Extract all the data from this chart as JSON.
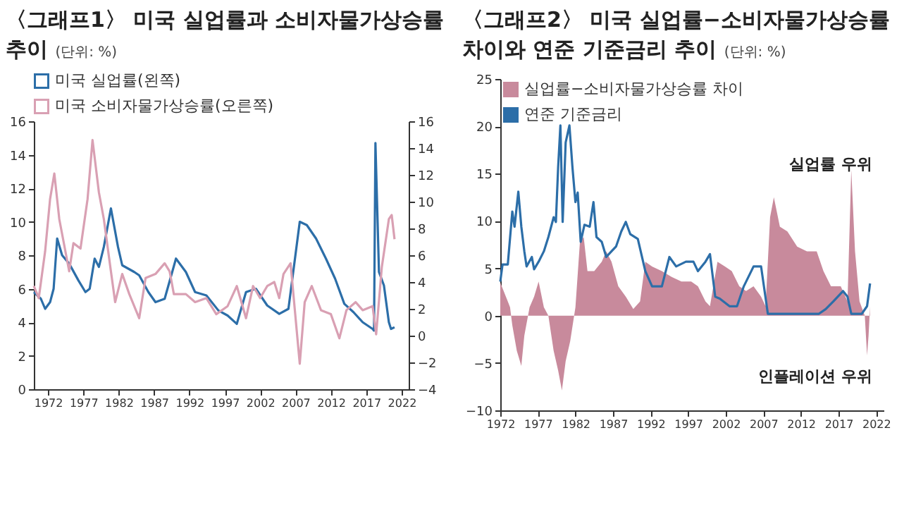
{
  "chart_data": [
    {
      "type": "line",
      "title": "〈그래프1〉 미국 실업률과 소비자물가상승률 추이",
      "subtitle": "(단위: %)",
      "xlim": [
        1970,
        2023
      ],
      "xticks": [
        1972,
        1977,
        1982,
        1987,
        1992,
        1997,
        2002,
        2007,
        2012,
        2017,
        2022
      ],
      "ylim": [
        0,
        16
      ],
      "yticks": [
        0,
        2,
        4,
        6,
        8,
        10,
        12,
        14,
        16
      ],
      "y2lim": [
        -4,
        16
      ],
      "y2ticks": [
        -4,
        -2,
        0,
        2,
        4,
        6,
        8,
        10,
        12,
        14,
        16
      ],
      "legend": "top",
      "series": [
        {
          "name": "미국 실업률(왼쪽)",
          "color": "#2c6ea8",
          "x": [
            1970.0,
            1971.0,
            1971.6,
            1972.3,
            1972.8,
            1973.3,
            1974.0,
            1975.0,
            1976.3,
            1977.3,
            1977.9,
            1978.6,
            1979.2,
            1979.9,
            1980.9,
            1981.9,
            1982.5,
            1984.2,
            1984.9,
            1986.2,
            1987.2,
            1988.5,
            1990.1,
            1991.5,
            1992.8,
            1994.4,
            1996.1,
            1997.4,
            1998.7,
            2000.0,
            2001.4,
            2003.0,
            2004.7,
            2006.0,
            2007.6,
            2008.6,
            2009.9,
            2011.3,
            2012.6,
            2013.9,
            2015.2,
            2016.5,
            2017.9,
            2018.1,
            2018.3,
            2018.8,
            2019.5,
            2020.2,
            2020.5,
            2021.0
          ],
          "values": [
            5.8,
            5.4,
            4.8,
            5.2,
            6.0,
            9.0,
            8.0,
            7.5,
            6.5,
            5.8,
            6.0,
            7.8,
            7.3,
            8.5,
            10.8,
            8.5,
            7.4,
            7.0,
            6.8,
            5.8,
            5.2,
            5.4,
            7.8,
            7.0,
            5.8,
            5.6,
            4.7,
            4.4,
            3.9,
            5.8,
            6.0,
            5.0,
            4.5,
            4.8,
            10.0,
            9.8,
            9.0,
            7.8,
            6.6,
            5.1,
            4.6,
            4.0,
            3.6,
            3.5,
            14.7,
            7.0,
            6.2,
            4.0,
            3.6,
            3.7
          ]
        },
        {
          "name": "미국 소비자물가상승률(오른쪽)",
          "color": "#d9a0b3",
          "axis": "y2",
          "x": [
            1970.0,
            1970.7,
            1971.6,
            1972.3,
            1972.9,
            1973.6,
            1975.0,
            1975.6,
            1976.6,
            1977.6,
            1978.3,
            1979.2,
            1979.9,
            1980.9,
            1981.5,
            1982.5,
            1983.5,
            1984.9,
            1985.8,
            1987.2,
            1988.5,
            1989.2,
            1989.8,
            1991.5,
            1992.8,
            1994.4,
            1995.8,
            1997.4,
            1998.7,
            2000.0,
            2001.0,
            2002.0,
            2003.0,
            2004.0,
            2004.7,
            2005.3,
            2006.3,
            2007.6,
            2008.3,
            2009.3,
            2010.6,
            2012.0,
            2013.2,
            2014.2,
            2015.5,
            2016.5,
            2017.9,
            2018.4,
            2019.2,
            2020.2,
            2020.6,
            2021.0
          ],
          "values": [
            3.7,
            2.8,
            6.3,
            10.2,
            12.1,
            8.7,
            4.8,
            6.9,
            6.5,
            10.2,
            14.6,
            10.7,
            8.7,
            4.8,
            2.5,
            4.6,
            3.1,
            1.3,
            4.3,
            4.6,
            5.4,
            4.8,
            3.1,
            3.1,
            2.5,
            2.8,
            1.6,
            2.2,
            3.7,
            1.3,
            3.7,
            2.8,
            3.7,
            4.0,
            2.8,
            4.6,
            5.4,
            -2.1,
            2.5,
            3.7,
            1.9,
            1.6,
            -0.2,
            1.9,
            2.5,
            1.9,
            2.2,
            0.1,
            5.1,
            8.7,
            9.0,
            7.2
          ]
        }
      ]
    },
    {
      "type": "area",
      "title": "〈그래프2〉 미국 실업률−소비자물가상승률 차이와 연준 기준금리 추이",
      "subtitle": "(단위: %)",
      "xlim": [
        1972,
        2023
      ],
      "xticks": [
        1972,
        1977,
        1982,
        1987,
        1992,
        1997,
        2002,
        2007,
        2012,
        2017,
        2022
      ],
      "ylim": [
        -10,
        25
      ],
      "yticks": [
        -10,
        -5,
        0,
        5,
        10,
        15,
        20,
        25
      ],
      "legend": "top left",
      "annotations": [
        "실업률 우위",
        "인플레이션 우위"
      ],
      "series": [
        {
          "name": "실업률−소비자물가상승률 차이",
          "color": "#c88a9c",
          "x": [
            1972.0,
            1973.0,
            1973.3,
            1973.6,
            1974.2,
            1974.8,
            1975.2,
            1975.9,
            1976.5,
            1977.1,
            1977.8,
            1978.4,
            1979.1,
            1979.7,
            1980.2,
            1980.7,
            1981.3,
            1982.0,
            1982.6,
            1983.1,
            1983.6,
            1984.5,
            1985.5,
            1986.1,
            1986.8,
            1987.7,
            1988.7,
            1989.7,
            1990.6,
            1991.3,
            1992.2,
            1993.5,
            1994.8,
            1996.1,
            1997.4,
            1998.3,
            1999.3,
            1999.9,
            2000.9,
            2001.9,
            2002.8,
            2003.8,
            2004.7,
            2005.7,
            2006.7,
            2007.3,
            2007.9,
            2008.4,
            2009.2,
            2010.2,
            2011.5,
            2012.8,
            2014.1,
            2015.0,
            2016.0,
            2017.3,
            2018.2,
            2018.7,
            2019.2,
            2019.8,
            2020.5,
            2020.8,
            2021.0,
            2021.2
          ],
          "values": [
            3.5,
            1.5,
            0.9,
            -1,
            -3.7,
            -5.3,
            -2.1,
            0.9,
            2.0,
            3.6,
            0.9,
            0,
            -3.7,
            -5.8,
            -7.9,
            -4.8,
            -2.7,
            0.9,
            7.8,
            8.3,
            4.7,
            4.7,
            5.7,
            6.8,
            5.7,
            3.1,
            2.0,
            0.7,
            1.5,
            5.7,
            5.2,
            4.7,
            4.1,
            3.6,
            3.6,
            3.1,
            1.5,
            1.0,
            5.7,
            5.2,
            4.7,
            3.1,
            2.6,
            3.1,
            2.0,
            1.0,
            10.4,
            12.5,
            9.4,
            8.9,
            7.3,
            6.8,
            6.8,
            4.7,
            3.1,
            3.1,
            1.5,
            15.4,
            6.8,
            1.5,
            0,
            -4.2,
            -2.1,
            1.0
          ]
        },
        {
          "name": "연준 기준금리",
          "color": "#2c6ea8",
          "type": "line",
          "x": [
            1972.0,
            1972.3,
            1973.0,
            1973.6,
            1973.9,
            1974.4,
            1974.8,
            1975.2,
            1975.5,
            1976.2,
            1976.5,
            1977.1,
            1977.8,
            1978.4,
            1979.1,
            1979.4,
            1979.7,
            1980.0,
            1980.3,
            1980.7,
            1981.2,
            1981.6,
            1982.0,
            1982.3,
            1982.7,
            1983.2,
            1983.9,
            1984.4,
            1984.8,
            1985.5,
            1986.1,
            1986.8,
            1987.4,
            1988.1,
            1988.7,
            1989.3,
            1990.3,
            1991.3,
            1992.2,
            1993.5,
            1994.5,
            1995.4,
            1996.7,
            1997.7,
            1998.3,
            1999.3,
            1999.9,
            2000.6,
            2001.2,
            2002.5,
            2003.5,
            2004.4,
            2005.7,
            2006.7,
            2007.6,
            2011.5,
            2014.4,
            2015.3,
            2016.3,
            2017.6,
            2018.2,
            2018.7,
            2020.1,
            2020.8,
            2021.2
          ],
          "values": [
            3.6,
            5.4,
            5.4,
            11,
            9.4,
            13.1,
            9.4,
            6.8,
            5.2,
            6.2,
            4.9,
            5.7,
            6.8,
            8.3,
            10.4,
            9.9,
            15.7,
            20.1,
            9.9,
            18.3,
            20.1,
            15.7,
            12.0,
            13.0,
            7.8,
            9.6,
            9.4,
            12.0,
            8.3,
            7.8,
            6.2,
            6.8,
            7.3,
            8.9,
            9.9,
            8.6,
            8.1,
            4.7,
            3.1,
            3.1,
            6.2,
            5.2,
            5.7,
            5.7,
            4.7,
            5.7,
            6.5,
            2.0,
            1.8,
            1.0,
            1.0,
            3.1,
            5.2,
            5.2,
            0.2,
            0.2,
            0.2,
            0.7,
            1.5,
            2.6,
            2.0,
            0.2,
            0.2,
            1.0,
            3.4
          ]
        }
      ]
    }
  ]
}
